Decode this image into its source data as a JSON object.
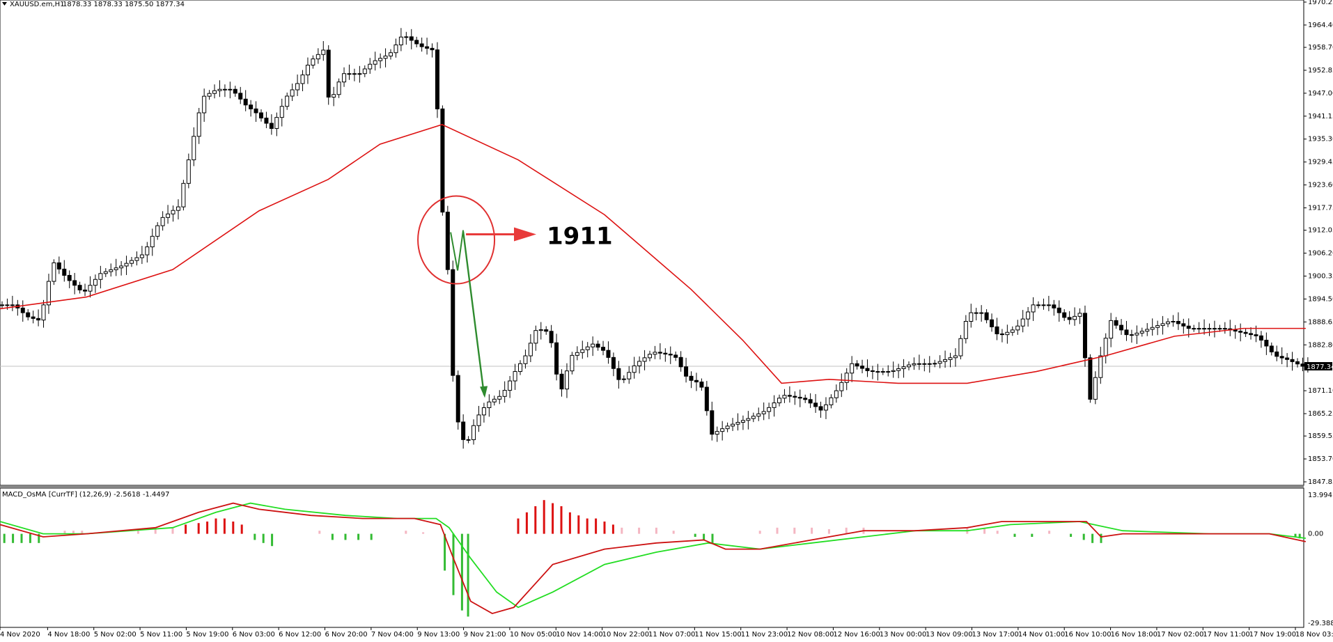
{
  "main_header": {
    "symbol": "XAUUSD.em,H1",
    "ohlc": "1878.33 1878.33 1875.50 1877.34"
  },
  "macd_header": {
    "label": "MACD_OsMA [CurrTF] (12,26,9) -2.5618 -1.4497"
  },
  "price_axis": [
    "1970.25",
    "1964.40",
    "1958.70",
    "1952.85",
    "1947.00",
    "1941.15",
    "1935.30",
    "1929.45",
    "1923.60",
    "1917.75",
    "1912.05",
    "1906.20",
    "1900.35",
    "1894.50",
    "1888.65",
    "1882.80",
    "1871.10",
    "1865.25",
    "1859.55",
    "1853.70",
    "1847.85"
  ],
  "current_price": "1877.34",
  "macd_axis": {
    "top": "13.9941",
    "zero": "0.00",
    "bottom": "-29.3882"
  },
  "time_axis": [
    "4 Nov 2020",
    "4 Nov 18:00",
    "5 Nov 02:00",
    "5 Nov 11:00",
    "5 Nov 19:00",
    "6 Nov 03:00",
    "6 Nov 12:00",
    "6 Nov 20:00",
    "7 Nov 04:00",
    "9 Nov 13:00",
    "9 Nov 21:00",
    "10 Nov 05:00",
    "10 Nov 14:00",
    "10 Nov 22:00",
    "11 Nov 07:00",
    "11 Nov 15:00",
    "11 Nov 23:00",
    "12 Nov 08:00",
    "12 Nov 16:00",
    "13 Nov 00:00",
    "13 Nov 09:00",
    "13 Nov 17:00",
    "14 Nov 01:00",
    "16 Nov 10:00",
    "16 Nov 18:00",
    "17 Nov 02:00",
    "17 Nov 11:00",
    "17 Nov 19:00",
    "18 Nov 03:00"
  ],
  "annotation": {
    "text": "1911",
    "value": 1911
  },
  "colors": {
    "up": "#ffffff",
    "down": "#000000",
    "ma": "#dd1111",
    "macd_green": "#22dd22",
    "macd_red": "#cc1111",
    "hist_red": "#dd1111",
    "hist_pink": "#f4b6c2",
    "hist_green": "#33bb33",
    "annot_circle": "#e03030",
    "annot_arrow": "#e83a3a",
    "green_arrow": "#2e8b2e"
  },
  "chart_data": {
    "type": "candlestick",
    "timeframe": "H1",
    "ylim": [
      1847.85,
      1970.25
    ],
    "price_series_keypoints": [
      {
        "x": 0,
        "y": 1893
      },
      {
        "x": 20,
        "y": 1893
      },
      {
        "x": 35,
        "y": 1890
      },
      {
        "x": 50,
        "y": 1889
      },
      {
        "x": 65,
        "y": 1904
      },
      {
        "x": 80,
        "y": 1900
      },
      {
        "x": 100,
        "y": 1896
      },
      {
        "x": 120,
        "y": 1901
      },
      {
        "x": 145,
        "y": 1903
      },
      {
        "x": 170,
        "y": 1906
      },
      {
        "x": 190,
        "y": 1915
      },
      {
        "x": 210,
        "y": 1918
      },
      {
        "x": 225,
        "y": 1933
      },
      {
        "x": 238,
        "y": 1946
      },
      {
        "x": 255,
        "y": 1948
      },
      {
        "x": 272,
        "y": 1948
      },
      {
        "x": 288,
        "y": 1944
      },
      {
        "x": 300,
        "y": 1942
      },
      {
        "x": 318,
        "y": 1938
      },
      {
        "x": 335,
        "y": 1946
      },
      {
        "x": 350,
        "y": 1950
      },
      {
        "x": 362,
        "y": 1955
      },
      {
        "x": 378,
        "y": 1958
      },
      {
        "x": 385,
        "y": 1944
      },
      {
        "x": 400,
        "y": 1952
      },
      {
        "x": 420,
        "y": 1952
      },
      {
        "x": 435,
        "y": 1955
      },
      {
        "x": 455,
        "y": 1957
      },
      {
        "x": 470,
        "y": 1962
      },
      {
        "x": 490,
        "y": 1959
      },
      {
        "x": 505,
        "y": 1958
      },
      {
        "x": 511,
        "y": 1940
      },
      {
        "x": 517,
        "y": 1912
      },
      {
        "x": 523,
        "y": 1900
      },
      {
        "x": 529,
        "y": 1870
      },
      {
        "x": 537,
        "y": 1859
      },
      {
        "x": 545,
        "y": 1858
      },
      {
        "x": 555,
        "y": 1864
      },
      {
        "x": 568,
        "y": 1868
      },
      {
        "x": 585,
        "y": 1870
      },
      {
        "x": 600,
        "y": 1876
      },
      {
        "x": 612,
        "y": 1880
      },
      {
        "x": 625,
        "y": 1887
      },
      {
        "x": 640,
        "y": 1886
      },
      {
        "x": 652,
        "y": 1870
      },
      {
        "x": 665,
        "y": 1880
      },
      {
        "x": 690,
        "y": 1883
      },
      {
        "x": 705,
        "y": 1881
      },
      {
        "x": 722,
        "y": 1873
      },
      {
        "x": 740,
        "y": 1878
      },
      {
        "x": 760,
        "y": 1881
      },
      {
        "x": 785,
        "y": 1880
      },
      {
        "x": 800,
        "y": 1874
      },
      {
        "x": 815,
        "y": 1873
      },
      {
        "x": 828,
        "y": 1860
      },
      {
        "x": 845,
        "y": 1862
      },
      {
        "x": 870,
        "y": 1864
      },
      {
        "x": 890,
        "y": 1866
      },
      {
        "x": 910,
        "y": 1870
      },
      {
        "x": 935,
        "y": 1869
      },
      {
        "x": 955,
        "y": 1866
      },
      {
        "x": 975,
        "y": 1872
      },
      {
        "x": 990,
        "y": 1878
      },
      {
        "x": 1010,
        "y": 1876
      },
      {
        "x": 1035,
        "y": 1876
      },
      {
        "x": 1060,
        "y": 1878
      },
      {
        "x": 1085,
        "y": 1878
      },
      {
        "x": 1110,
        "y": 1880
      },
      {
        "x": 1125,
        "y": 1891
      },
      {
        "x": 1140,
        "y": 1891
      },
      {
        "x": 1160,
        "y": 1885
      },
      {
        "x": 1180,
        "y": 1887
      },
      {
        "x": 1200,
        "y": 1893
      },
      {
        "x": 1220,
        "y": 1893
      },
      {
        "x": 1240,
        "y": 1889
      },
      {
        "x": 1255,
        "y": 1891
      },
      {
        "x": 1265,
        "y": 1868
      },
      {
        "x": 1278,
        "y": 1880
      },
      {
        "x": 1290,
        "y": 1889
      },
      {
        "x": 1310,
        "y": 1885
      },
      {
        "x": 1335,
        "y": 1887
      },
      {
        "x": 1360,
        "y": 1889
      },
      {
        "x": 1380,
        "y": 1887
      },
      {
        "x": 1400,
        "y": 1887
      },
      {
        "x": 1420,
        "y": 1887
      },
      {
        "x": 1440,
        "y": 1886
      },
      {
        "x": 1460,
        "y": 1885
      },
      {
        "x": 1480,
        "y": 1880
      },
      {
        "x": 1495,
        "y": 1879
      },
      {
        "x": 1512,
        "y": 1877.34
      }
    ],
    "moving_average": [
      {
        "x": 0,
        "y": 1892
      },
      {
        "x": 100,
        "y": 1895
      },
      {
        "x": 200,
        "y": 1902
      },
      {
        "x": 300,
        "y": 1917
      },
      {
        "x": 380,
        "y": 1925
      },
      {
        "x": 440,
        "y": 1934
      },
      {
        "x": 512,
        "y": 1939
      },
      {
        "x": 600,
        "y": 1930
      },
      {
        "x": 700,
        "y": 1916
      },
      {
        "x": 800,
        "y": 1897
      },
      {
        "x": 860,
        "y": 1884
      },
      {
        "x": 905,
        "y": 1873
      },
      {
        "x": 960,
        "y": 1874
      },
      {
        "x": 1040,
        "y": 1873
      },
      {
        "x": 1120,
        "y": 1873
      },
      {
        "x": 1200,
        "y": 1876
      },
      {
        "x": 1280,
        "y": 1880
      },
      {
        "x": 1360,
        "y": 1885
      },
      {
        "x": 1440,
        "y": 1887
      },
      {
        "x": 1512,
        "y": 1887
      }
    ],
    "macd_ylim": [
      -29.3882,
      13.9941
    ],
    "macd_line": [
      {
        "x": 0,
        "y": 3
      },
      {
        "x": 50,
        "y": -1
      },
      {
        "x": 100,
        "y": 0
      },
      {
        "x": 180,
        "y": 2
      },
      {
        "x": 230,
        "y": 7
      },
      {
        "x": 270,
        "y": 10
      },
      {
        "x": 300,
        "y": 8
      },
      {
        "x": 360,
        "y": 6
      },
      {
        "x": 420,
        "y": 5
      },
      {
        "x": 480,
        "y": 5
      },
      {
        "x": 510,
        "y": 3
      },
      {
        "x": 525,
        "y": -8
      },
      {
        "x": 545,
        "y": -22
      },
      {
        "x": 570,
        "y": -26
      },
      {
        "x": 595,
        "y": -24
      },
      {
        "x": 640,
        "y": -10
      },
      {
        "x": 700,
        "y": -5
      },
      {
        "x": 760,
        "y": -3
      },
      {
        "x": 815,
        "y": -2
      },
      {
        "x": 840,
        "y": -5
      },
      {
        "x": 880,
        "y": -5
      },
      {
        "x": 940,
        "y": -2
      },
      {
        "x": 1000,
        "y": 1
      },
      {
        "x": 1060,
        "y": 1
      },
      {
        "x": 1120,
        "y": 2
      },
      {
        "x": 1160,
        "y": 4
      },
      {
        "x": 1220,
        "y": 4
      },
      {
        "x": 1258,
        "y": 4
      },
      {
        "x": 1275,
        "y": -1
      },
      {
        "x": 1300,
        "y": 0
      },
      {
        "x": 1400,
        "y": 0
      },
      {
        "x": 1470,
        "y": 0
      },
      {
        "x": 1512,
        "y": -2.56
      }
    ],
    "signal_line": [
      {
        "x": 0,
        "y": 4
      },
      {
        "x": 50,
        "y": 0
      },
      {
        "x": 100,
        "y": 0
      },
      {
        "x": 200,
        "y": 2
      },
      {
        "x": 250,
        "y": 7
      },
      {
        "x": 290,
        "y": 10
      },
      {
        "x": 330,
        "y": 8
      },
      {
        "x": 400,
        "y": 6
      },
      {
        "x": 460,
        "y": 5
      },
      {
        "x": 505,
        "y": 5
      },
      {
        "x": 520,
        "y": 2
      },
      {
        "x": 545,
        "y": -8
      },
      {
        "x": 575,
        "y": -19
      },
      {
        "x": 600,
        "y": -24
      },
      {
        "x": 640,
        "y": -19
      },
      {
        "x": 700,
        "y": -10
      },
      {
        "x": 760,
        "y": -6
      },
      {
        "x": 820,
        "y": -3
      },
      {
        "x": 880,
        "y": -5
      },
      {
        "x": 940,
        "y": -3
      },
      {
        "x": 1000,
        "y": -1
      },
      {
        "x": 1060,
        "y": 1
      },
      {
        "x": 1120,
        "y": 1
      },
      {
        "x": 1170,
        "y": 3
      },
      {
        "x": 1250,
        "y": 4
      },
      {
        "x": 1300,
        "y": 1
      },
      {
        "x": 1400,
        "y": 0
      },
      {
        "x": 1470,
        "y": 0
      },
      {
        "x": 1512,
        "y": -1.45
      }
    ],
    "histogram": [
      {
        "x": 5,
        "y": -3
      },
      {
        "x": 15,
        "y": -3
      },
      {
        "x": 25,
        "y": -3
      },
      {
        "x": 35,
        "y": -3
      },
      {
        "x": 45,
        "y": -3
      },
      {
        "x": 75,
        "y": 1
      },
      {
        "x": 85,
        "y": 1
      },
      {
        "x": 95,
        "y": 1
      },
      {
        "x": 160,
        "y": 1
      },
      {
        "x": 180,
        "y": 1.5
      },
      {
        "x": 200,
        "y": 2
      },
      {
        "x": 215,
        "y": 3
      },
      {
        "x": 230,
        "y": 3.5
      },
      {
        "x": 240,
        "y": 4
      },
      {
        "x": 250,
        "y": 5
      },
      {
        "x": 260,
        "y": 5
      },
      {
        "x": 270,
        "y": 4
      },
      {
        "x": 280,
        "y": 3
      },
      {
        "x": 295,
        "y": -2
      },
      {
        "x": 305,
        "y": -3
      },
      {
        "x": 315,
        "y": -4
      },
      {
        "x": 370,
        "y": 1
      },
      {
        "x": 385,
        "y": -2
      },
      {
        "x": 400,
        "y": -2
      },
      {
        "x": 415,
        "y": -2
      },
      {
        "x": 430,
        "y": -2
      },
      {
        "x": 470,
        "y": 1
      },
      {
        "x": 490,
        "y": 0.5
      },
      {
        "x": 515,
        "y": -12
      },
      {
        "x": 525,
        "y": -20
      },
      {
        "x": 535,
        "y": -25
      },
      {
        "x": 542,
        "y": -27
      },
      {
        "x": 600,
        "y": 5
      },
      {
        "x": 610,
        "y": 7
      },
      {
        "x": 620,
        "y": 9
      },
      {
        "x": 630,
        "y": 11
      },
      {
        "x": 640,
        "y": 10
      },
      {
        "x": 650,
        "y": 9
      },
      {
        "x": 660,
        "y": 7
      },
      {
        "x": 670,
        "y": 6
      },
      {
        "x": 680,
        "y": 5
      },
      {
        "x": 690,
        "y": 5
      },
      {
        "x": 700,
        "y": 4
      },
      {
        "x": 710,
        "y": 3
      },
      {
        "x": 720,
        "y": 2
      },
      {
        "x": 740,
        "y": 2
      },
      {
        "x": 760,
        "y": 2
      },
      {
        "x": 780,
        "y": 1
      },
      {
        "x": 805,
        "y": -1
      },
      {
        "x": 815,
        "y": -2
      },
      {
        "x": 825,
        "y": -3
      },
      {
        "x": 880,
        "y": 1
      },
      {
        "x": 900,
        "y": 2
      },
      {
        "x": 920,
        "y": 2
      },
      {
        "x": 940,
        "y": 2
      },
      {
        "x": 960,
        "y": 1.5
      },
      {
        "x": 980,
        "y": 2
      },
      {
        "x": 1000,
        "y": 2
      },
      {
        "x": 1120,
        "y": 2
      },
      {
        "x": 1140,
        "y": 2
      },
      {
        "x": 1155,
        "y": 1
      },
      {
        "x": 1175,
        "y": -1
      },
      {
        "x": 1195,
        "y": -1
      },
      {
        "x": 1215,
        "y": 1
      },
      {
        "x": 1240,
        "y": -1
      },
      {
        "x": 1255,
        "y": -2
      },
      {
        "x": 1265,
        "y": -3
      },
      {
        "x": 1275,
        "y": -3
      },
      {
        "x": 1500,
        "y": -1
      },
      {
        "x": 1505,
        "y": -1.5
      }
    ]
  }
}
